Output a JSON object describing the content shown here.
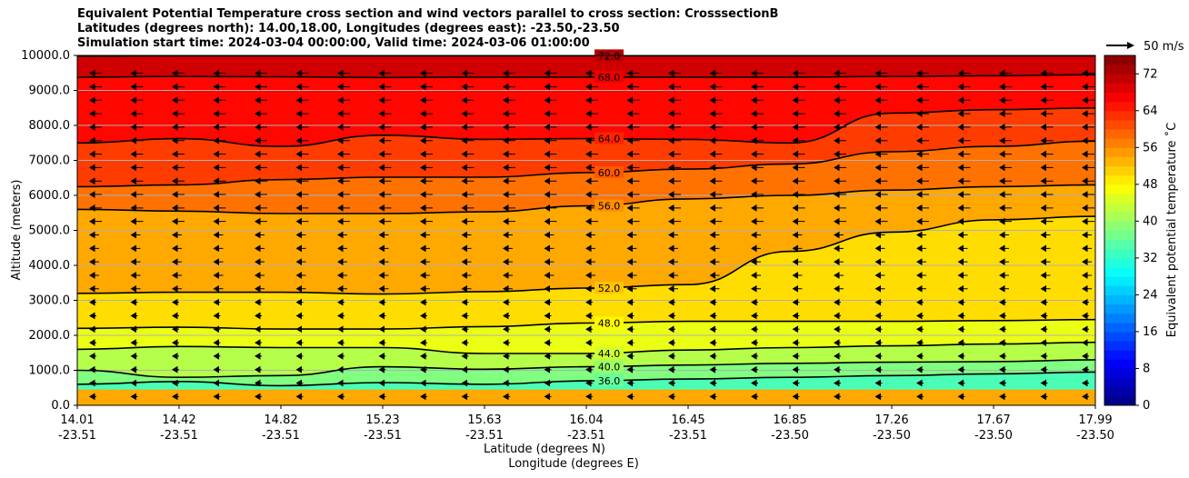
{
  "chart_data": {
    "type": "heatmap",
    "title_lines": [
      "Equivalent Potential Temperature cross section and wind vectors parallel to cross section: CrosssectionB",
      "Latitudes (degrees north): 14.00,18.00, Longitudes (degrees east): -23.50,-23.50",
      "Simulation start time: 2024-03-04 00:00:00, Valid time: 2024-03-06 01:00:00"
    ],
    "ylabel": "Altitude (meters)",
    "xlabel_lat": "Latitude (degrees N)",
    "xlabel_lon": "Longitude (degrees E)",
    "ylim": [
      0,
      10000
    ],
    "y_ticks": [
      "0.0",
      "1000.0",
      "2000.0",
      "3000.0",
      "4000.0",
      "5000.0",
      "6000.0",
      "7000.0",
      "8000.0",
      "9000.0",
      "10000.0"
    ],
    "x_ticks": [
      {
        "lat": "14.01",
        "lon": "-23.51"
      },
      {
        "lat": "14.42",
        "lon": "-23.51"
      },
      {
        "lat": "14.82",
        "lon": "-23.51"
      },
      {
        "lat": "15.23",
        "lon": "-23.51"
      },
      {
        "lat": "15.63",
        "lon": "-23.51"
      },
      {
        "lat": "16.04",
        "lon": "-23.51"
      },
      {
        "lat": "16.45",
        "lon": "-23.51"
      },
      {
        "lat": "16.85",
        "lon": "-23.50"
      },
      {
        "lat": "17.26",
        "lon": "-23.50"
      },
      {
        "lat": "17.67",
        "lon": "-23.50"
      },
      {
        "lat": "17.99",
        "lon": "-23.50"
      }
    ],
    "colorbar": {
      "label": "Equivalent potential temperature ˚C",
      "range": [
        0,
        76
      ],
      "ticks": [
        "0",
        "8",
        "16",
        "24",
        "32",
        "40",
        "48",
        "56",
        "64",
        "72"
      ],
      "colormap": "jet"
    },
    "quiver_key": "50 m/s",
    "grid": "horizontal",
    "contour_labels": [
      "72.0",
      "68.0",
      "64.0",
      "60.0",
      "56.0",
      "52.0",
      "48.0",
      "44.0",
      "40.0",
      "36.0"
    ],
    "contours": [
      {
        "level": 72,
        "heights": [
          9980,
          9990,
          9990,
          9990,
          9990,
          9990,
          9990,
          9990,
          9990,
          9990,
          9990
        ]
      },
      {
        "level": 68,
        "heights": [
          9380,
          9400,
          9390,
          9370,
          9380,
          9380,
          9380,
          9380,
          9400,
          9420,
          9450
        ]
      },
      {
        "level": 64,
        "heights": [
          7500,
          7620,
          7400,
          7720,
          7600,
          7620,
          7600,
          7500,
          8350,
          8450,
          8500
        ]
      },
      {
        "level": 60,
        "heights": [
          6250,
          6300,
          6450,
          6520,
          6520,
          6650,
          6750,
          6900,
          7250,
          7400,
          7550
        ]
      },
      {
        "level": 56,
        "heights": [
          5600,
          5550,
          5480,
          5480,
          5530,
          5700,
          5900,
          6000,
          6150,
          6250,
          6300
        ]
      },
      {
        "level": 52,
        "heights": [
          3200,
          3230,
          3230,
          3180,
          3250,
          3350,
          3450,
          4400,
          4950,
          5300,
          5400
        ]
      },
      {
        "level": 48,
        "heights": [
          2200,
          2230,
          2180,
          2180,
          2250,
          2350,
          2400,
          2400,
          2400,
          2420,
          2450
        ]
      },
      {
        "level": 44,
        "heights": [
          1600,
          1680,
          1650,
          1650,
          1480,
          1480,
          1580,
          1650,
          1700,
          1750,
          1800
        ]
      },
      {
        "level": 40,
        "heights": [
          1000,
          800,
          850,
          1100,
          1030,
          1100,
          1150,
          1200,
          1230,
          1250,
          1300
        ]
      },
      {
        "level": 36,
        "heights": [
          600,
          680,
          560,
          650,
          600,
          700,
          750,
          800,
          850,
          900,
          950
        ]
      }
    ],
    "wind": "easterly (vectors pointing left), strongest above 5000 m"
  }
}
